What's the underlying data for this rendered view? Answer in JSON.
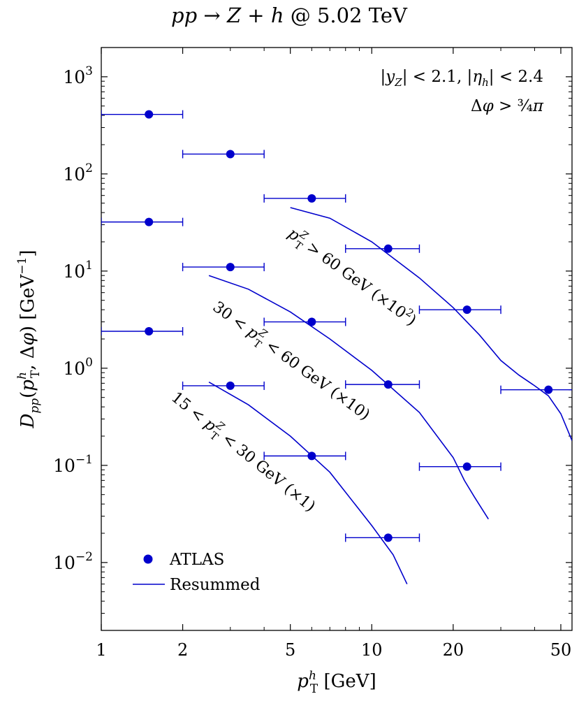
{
  "chart_data": {
    "type": "scatter",
    "title": "pp → Z + h @ 5.02 TeV",
    "xlabel": "p_T^h [GeV]",
    "ylabel": "D_pp(p_T^h, Δφ) [GeV^-1]",
    "x_scale": "log",
    "y_scale": "log",
    "xlim": [
      1,
      55
    ],
    "ylim": [
      0.002,
      2000
    ],
    "x_ticks": [
      1,
      2,
      5,
      10,
      20,
      50
    ],
    "x_tick_labels": [
      "1",
      "2",
      "5",
      "10",
      "20",
      "50"
    ],
    "y_tick_exponents": [
      -2,
      -1,
      0,
      1,
      2,
      3
    ],
    "cut_text_1": "|y_Z| < 2.1, |η_h| < 2.4",
    "cut_text_2": "Δφ > 3/4 π",
    "legend": {
      "position": "bottom-left",
      "entries": [
        "ATLAS",
        "Resummed"
      ]
    },
    "colors": {
      "series": "#0000cc",
      "axes": "#000000"
    },
    "series": [
      {
        "name": "ATLAS",
        "label": "p_T^Z > 60 GeV (×10²)",
        "points": [
          {
            "x": 1.5,
            "xlo": 1,
            "xhi": 2,
            "y": 410
          },
          {
            "x": 3,
            "xlo": 2,
            "xhi": 4,
            "y": 160
          },
          {
            "x": 6,
            "xlo": 4,
            "xhi": 8,
            "y": 56
          },
          {
            "x": 11.5,
            "xlo": 8,
            "xhi": 15,
            "y": 17
          },
          {
            "x": 22.5,
            "xlo": 15,
            "xhi": 30,
            "y": 4
          },
          {
            "x": 45,
            "xlo": 30,
            "xhi": 60,
            "y": 0.6
          }
        ]
      },
      {
        "name": "ATLAS",
        "label": "30 < p_T^Z < 60 GeV (×10)",
        "points": [
          {
            "x": 1.5,
            "xlo": 1,
            "xhi": 2,
            "y": 32
          },
          {
            "x": 3,
            "xlo": 2,
            "xhi": 4,
            "y": 11
          },
          {
            "x": 6,
            "xlo": 4,
            "xhi": 8,
            "y": 3
          },
          {
            "x": 11.5,
            "xlo": 8,
            "xhi": 15,
            "y": 0.68
          },
          {
            "x": 22.5,
            "xlo": 15,
            "xhi": 30,
            "y": 0.097
          }
        ]
      },
      {
        "name": "ATLAS",
        "label": "15 < p_T^Z < 30 GeV (×1)",
        "points": [
          {
            "x": 1.5,
            "xlo": 1,
            "xhi": 2,
            "y": 2.4
          },
          {
            "x": 3,
            "xlo": 2,
            "xhi": 4,
            "y": 0.66
          },
          {
            "x": 6,
            "xlo": 4,
            "xhi": 8,
            "y": 0.125
          },
          {
            "x": 11.5,
            "xlo": 8,
            "xhi": 15,
            "y": 0.018
          }
        ]
      }
    ],
    "curves": [
      {
        "name": "Resummed",
        "points": [
          [
            5,
            45
          ],
          [
            7,
            35
          ],
          [
            10,
            20
          ],
          [
            15,
            8.5
          ],
          [
            20,
            4.2
          ],
          [
            25,
            2.2
          ],
          [
            30,
            1.2
          ],
          [
            35,
            0.85
          ],
          [
            40,
            0.66
          ],
          [
            45,
            0.52
          ],
          [
            50,
            0.34
          ],
          [
            55,
            0.18
          ]
        ]
      },
      {
        "name": "Resummed",
        "points": [
          [
            2.5,
            9
          ],
          [
            3.5,
            6.5
          ],
          [
            5,
            3.8
          ],
          [
            7,
            2
          ],
          [
            10,
            0.95
          ],
          [
            15,
            0.35
          ],
          [
            20,
            0.12
          ],
          [
            22,
            0.07
          ],
          [
            24,
            0.047
          ],
          [
            27,
            0.028
          ]
        ]
      },
      {
        "name": "Resummed",
        "points": [
          [
            2.5,
            0.72
          ],
          [
            3.5,
            0.42
          ],
          [
            5,
            0.2
          ],
          [
            7,
            0.085
          ],
          [
            10,
            0.024
          ],
          [
            12,
            0.012
          ],
          [
            13.5,
            0.006
          ]
        ]
      }
    ]
  }
}
